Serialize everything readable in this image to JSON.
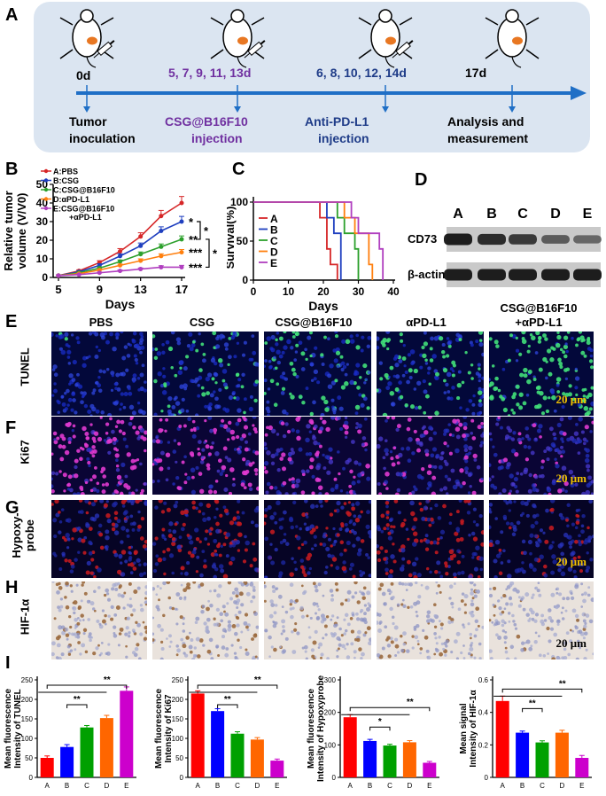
{
  "panels": {
    "A": "A",
    "B": "B",
    "C": "C",
    "D": "D",
    "E": "E",
    "F": "F",
    "G": "G",
    "H": "H",
    "I": "I"
  },
  "timeline": {
    "days": [
      "0d",
      "5, 7, 9, 11, 13d",
      "6, 8, 10, 12, 14d",
      "17d"
    ],
    "events": [
      {
        "line1": "Tumor",
        "line2": "inoculation"
      },
      {
        "line1": "CSG@B16F10",
        "line2": "injection"
      },
      {
        "line1": "Anti-PD-L1",
        "line2": "injection"
      },
      {
        "line1": "Analysis and",
        "line2": "measurement"
      }
    ],
    "colors": {
      "purple": "#7030a0",
      "blue": "#1f3c88",
      "arrow": "#1f6fc6",
      "bg": "#dbe5f1",
      "mouse_tumor": "#e87722"
    }
  },
  "western": {
    "lanes": [
      "A",
      "B",
      "C",
      "D",
      "E"
    ],
    "rows": [
      "CD73",
      "β-actin"
    ],
    "band_intensity": {
      "CD73": [
        1.0,
        0.9,
        0.8,
        0.55,
        0.45
      ],
      "β-actin": [
        1,
        1,
        1,
        1,
        1
      ]
    }
  },
  "images": {
    "columns": [
      "PBS",
      "CSG",
      "CSG@B16F10",
      "αPD-L1",
      "CSG@B16F10\n+αPD-L1"
    ],
    "col_line1": [
      "PBS",
      "CSG",
      "CSG@B16F10",
      "αPD-L1",
      "CSG@B16F10"
    ],
    "col_line2": [
      "",
      "",
      "",
      "",
      "+αPD-L1"
    ],
    "rows": [
      {
        "label": "TUNEL",
        "style": "tunel"
      },
      {
        "label": "Ki67",
        "style": "ki67"
      },
      {
        "label": "Hypoxy-\nprobe",
        "label1": "Hypoxy-",
        "label2": "probe",
        "style": "hypoxy"
      },
      {
        "label": "HIF-1α",
        "style": "hif"
      }
    ],
    "scale_bar": "20 μm"
  },
  "chart_data": [
    {
      "type": "line",
      "panel": "B",
      "xlabel": "Days",
      "ylabel": "Relative tumor volume (V/V0)",
      "ylabel1": "Relative tumor",
      "ylabel2": "volume (V/V0)",
      "x": [
        5,
        7,
        9,
        11,
        13,
        15,
        17
      ],
      "xticks": [
        5,
        9,
        13,
        17
      ],
      "yticks": [
        0,
        10,
        20,
        30,
        40,
        50
      ],
      "xlim": [
        5,
        17
      ],
      "ylim": [
        0,
        50
      ],
      "legend": "top-left",
      "series": [
        {
          "name": "A:PBS",
          "color": "#d62728",
          "values": [
            1,
            3.5,
            8,
            14,
            22,
            33,
            40
          ],
          "err": [
            0.3,
            0.6,
            1,
            1.5,
            2,
            3,
            3.5
          ]
        },
        {
          "name": "B:CSG",
          "color": "#1f3fbf",
          "values": [
            1,
            3,
            6.5,
            11.5,
            17,
            25,
            30
          ],
          "err": [
            0.3,
            0.5,
            0.8,
            1.2,
            1.5,
            2.2,
            2.8
          ]
        },
        {
          "name": "C:CSG@B16F10",
          "color": "#2ca02c",
          "values": [
            1,
            2.5,
            5,
            8.5,
            12.5,
            16.5,
            20.5
          ],
          "err": [
            0.2,
            0.4,
            0.6,
            0.9,
            1.2,
            1.5,
            1.8
          ]
        },
        {
          "name": "D:αPD-L1",
          "color": "#ff7f0e",
          "values": [
            1,
            2,
            4,
            6.5,
            9,
            11.5,
            13.5
          ],
          "err": [
            0.2,
            0.3,
            0.5,
            0.7,
            1,
            1.2,
            1.5
          ]
        },
        {
          "name": "E:CSG@B16F10\n+αPD-L1",
          "name1": "E:CSG@B16F10",
          "name2": "+αPD-L1",
          "color": "#b03fbf",
          "values": [
            1,
            1.5,
            2.5,
            3.5,
            4.5,
            5.5,
            5.5
          ],
          "err": [
            0.2,
            0.3,
            0.4,
            0.5,
            0.6,
            0.8,
            1
          ]
        }
      ],
      "annotations": [
        "*",
        "**",
        "***",
        "***",
        "*"
      ]
    },
    {
      "type": "line",
      "panel": "C",
      "xlabel": "Days",
      "ylabel": "Survival(%)",
      "xticks": [
        0,
        10,
        20,
        30,
        40
      ],
      "yticks": [
        0,
        50,
        100
      ],
      "xlim": [
        0,
        40
      ],
      "ylim": [
        0,
        100
      ],
      "legend": "left",
      "series": [
        {
          "name": "A",
          "color": "#d62728",
          "steps": [
            [
              0,
              100
            ],
            [
              19,
              100
            ],
            [
              19,
              80
            ],
            [
              21,
              80
            ],
            [
              21,
              40
            ],
            [
              22,
              40
            ],
            [
              22,
              20
            ],
            [
              24,
              20
            ],
            [
              24,
              0
            ]
          ]
        },
        {
          "name": "B",
          "color": "#1f3fbf",
          "steps": [
            [
              0,
              100
            ],
            [
              21,
              100
            ],
            [
              21,
              80
            ],
            [
              23,
              80
            ],
            [
              23,
              60
            ],
            [
              25,
              60
            ],
            [
              25,
              0
            ]
          ]
        },
        {
          "name": "C",
          "color": "#2ca02c",
          "steps": [
            [
              0,
              100
            ],
            [
              24,
              100
            ],
            [
              24,
              80
            ],
            [
              26,
              80
            ],
            [
              26,
              60
            ],
            [
              29,
              60
            ],
            [
              29,
              40
            ],
            [
              30,
              40
            ],
            [
              30,
              0
            ]
          ]
        },
        {
          "name": "D",
          "color": "#ff7f0e",
          "steps": [
            [
              0,
              100
            ],
            [
              26,
              100
            ],
            [
              26,
              80
            ],
            [
              29,
              80
            ],
            [
              29,
              60
            ],
            [
              33,
              60
            ],
            [
              33,
              20
            ],
            [
              34,
              20
            ],
            [
              34,
              0
            ]
          ]
        },
        {
          "name": "E",
          "color": "#b03fbf",
          "steps": [
            [
              0,
              100
            ],
            [
              28,
              100
            ],
            [
              28,
              80
            ],
            [
              30,
              80
            ],
            [
              30,
              60
            ],
            [
              36,
              60
            ],
            [
              36,
              40
            ],
            [
              37,
              40
            ],
            [
              37,
              0
            ]
          ]
        }
      ]
    },
    {
      "type": "bar",
      "panel": "I1",
      "ylabel": "Mean fluorescence Intensity of TUNEL",
      "ylabel1": "Mean fluorescence",
      "ylabel2": "Intensity of TUNEL",
      "categories": [
        "A",
        "B",
        "C",
        "D",
        "E"
      ],
      "values": [
        50,
        78,
        128,
        152,
        222
      ],
      "err": [
        5,
        6,
        5,
        7,
        10
      ],
      "yticks": [
        0,
        50,
        100,
        150,
        200,
        250
      ],
      "ylim": [
        0,
        250
      ],
      "colors": [
        "#ff0000",
        "#0000ff",
        "#00a000",
        "#ff6600",
        "#cc00cc"
      ],
      "brackets": [
        {
          "from": 0,
          "to": 4,
          "label": "**"
        },
        {
          "from": 1,
          "to": 2,
          "label": "**"
        }
      ]
    },
    {
      "type": "bar",
      "panel": "I2",
      "ylabel": "Mean fluorescence Intensity of Ki67",
      "ylabel1": "Mean fluorescence",
      "ylabel2": "Intensity of Ki67",
      "categories": [
        "A",
        "B",
        "C",
        "D",
        "E"
      ],
      "values": [
        215,
        170,
        112,
        97,
        43
      ],
      "err": [
        7,
        6,
        5,
        5,
        4
      ],
      "yticks": [
        0,
        50,
        100,
        150,
        200,
        250
      ],
      "ylim": [
        0,
        250
      ],
      "colors": [
        "#ff0000",
        "#0000ff",
        "#00a000",
        "#ff6600",
        "#cc00cc"
      ],
      "brackets": [
        {
          "from": 0,
          "to": 4,
          "label": "**"
        },
        {
          "from": 1,
          "to": 2,
          "label": "**"
        }
      ]
    },
    {
      "type": "bar",
      "panel": "I3",
      "ylabel": "Mean fluorescence Intensity of Hypoxyprobe",
      "ylabel1": "Mean fluorescence",
      "ylabel2": "Intensity of Hypoxyprobe",
      "categories": [
        "A",
        "B",
        "C",
        "D",
        "E"
      ],
      "values": [
        185,
        112,
        98,
        108,
        45
      ],
      "err": [
        8,
        5,
        4,
        5,
        4
      ],
      "yticks": [
        0,
        100,
        200,
        300
      ],
      "ylim": [
        0,
        300
      ],
      "colors": [
        "#ff0000",
        "#0000ff",
        "#00a000",
        "#ff6600",
        "#cc00cc"
      ],
      "brackets": [
        {
          "from": 0,
          "to": 4,
          "label": "**"
        },
        {
          "from": 1,
          "to": 2,
          "label": "*"
        }
      ]
    },
    {
      "type": "bar",
      "panel": "I4",
      "ylabel": "Mean signal Intensity of HIF-1α",
      "ylabel1": "Mean signal",
      "ylabel2": "Intensity of HIF-1α",
      "categories": [
        "A",
        "B",
        "C",
        "D",
        "E"
      ],
      "values": [
        0.47,
        0.275,
        0.215,
        0.275,
        0.12
      ],
      "err": [
        0.03,
        0.01,
        0.01,
        0.015,
        0.015
      ],
      "yticks": [
        0.0,
        0.2,
        0.4,
        0.6
      ],
      "ylim": [
        0,
        0.6
      ],
      "colors": [
        "#ff0000",
        "#0000ff",
        "#00a000",
        "#ff6600",
        "#cc00cc"
      ],
      "brackets": [
        {
          "from": 0,
          "to": 4,
          "label": "**"
        },
        {
          "from": 1,
          "to": 2,
          "label": "**"
        }
      ]
    }
  ]
}
